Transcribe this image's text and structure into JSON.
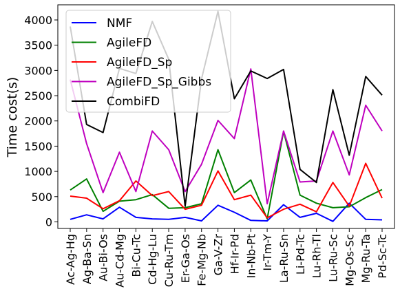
{
  "chart_data": {
    "type": "line",
    "ylabel": "Time cost(s)",
    "xlabel": "",
    "ylim": [
      -130,
      4300
    ],
    "yticks": [
      0,
      500,
      1000,
      1500,
      2000,
      2500,
      3000,
      3500,
      4000
    ],
    "grid": false,
    "legend": "top-left",
    "categories": [
      "Ac-Ag-Hg",
      "Ag-Ba-Sn",
      "Au-Bi-Os",
      "Au-Cd-Mg",
      "Bi-Cu-Tc",
      "Cd-Hg-Lu",
      "Cu-Ru-Tm",
      "Er-Ga-Os",
      "Fe-Mg-Nb",
      "Ga-V-Zr",
      "Hf-Ir-Pd",
      "In-Nb-Pt",
      "Ir-Tm-Y",
      "La-Ru-Sn",
      "Li-Pd-Tc",
      "Lu-Rh-Tl",
      "Lu-Ru-Sc",
      "Mg-Os-Sc",
      "Mg-Ru-Ta",
      "Pd-Sc-Tc"
    ],
    "series": [
      {
        "name": "NMF",
        "color": "#0000ff",
        "values": [
          50,
          140,
          60,
          290,
          90,
          60,
          50,
          90,
          20,
          330,
          190,
          30,
          20,
          340,
          90,
          170,
          10,
          370,
          50,
          40
        ]
      },
      {
        "name": "AgileFD",
        "color": "#008000",
        "values": [
          630,
          850,
          210,
          410,
          440,
          540,
          270,
          280,
          360,
          1430,
          580,
          830,
          60,
          1790,
          530,
          370,
          280,
          300,
          480,
          640
        ]
      },
      {
        "name": "AgileFD_Sp",
        "color": "#ff0000",
        "values": [
          510,
          470,
          260,
          420,
          810,
          520,
          600,
          250,
          330,
          1010,
          440,
          530,
          80,
          250,
          350,
          200,
          780,
          310,
          1160,
          470
        ]
      },
      {
        "name": "AgileFD_Sp_Gibbs",
        "color": "#bf00bf",
        "values": [
          2820,
          1550,
          580,
          1380,
          600,
          1800,
          1430,
          600,
          1140,
          2010,
          1650,
          3030,
          360,
          1800,
          790,
          810,
          1800,
          930,
          2310,
          1800
        ]
      },
      {
        "name": "CombiFD",
        "color": "#000000",
        "values": [
          3870,
          1930,
          1770,
          3040,
          2940,
          3970,
          3220,
          310,
          2830,
          4170,
          2440,
          2990,
          2840,
          3020,
          1040,
          780,
          2620,
          1320,
          2880,
          2510
        ]
      }
    ]
  }
}
